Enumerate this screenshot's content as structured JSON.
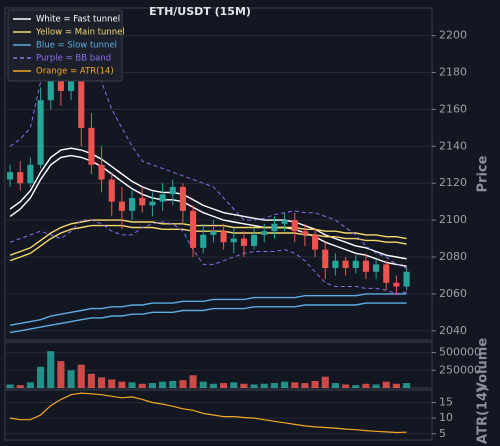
{
  "chart_data": [
    {
      "type": "candlestick",
      "title": "ETH/USDT (15M)",
      "y_label": "Price",
      "ylim": [
        2035,
        2215
      ],
      "yticks": [
        2040,
        2060,
        2080,
        2100,
        2120,
        2140,
        2160,
        2180,
        2200
      ],
      "grid": true,
      "up_color": "#26a69a",
      "down_color": "#ef5350",
      "open": [
        2122,
        2126,
        2120,
        2130,
        2165,
        2185,
        2170,
        2178,
        2150,
        2130,
        2122,
        2110,
        2105,
        2112,
        2108,
        2110,
        2114,
        2118,
        2105,
        2085,
        2092,
        2094,
        2088,
        2090,
        2086,
        2092,
        2094,
        2098,
        2100,
        2094,
        2092,
        2084,
        2074,
        2078,
        2074,
        2078,
        2072,
        2076,
        2066,
        2064
      ],
      "high": [
        2130,
        2132,
        2134,
        2172,
        2200,
        2198,
        2190,
        2182,
        2158,
        2140,
        2126,
        2118,
        2116,
        2118,
        2115,
        2120,
        2122,
        2120,
        2108,
        2098,
        2100,
        2098,
        2096,
        2094,
        2096,
        2098,
        2102,
        2104,
        2104,
        2098,
        2095,
        2088,
        2082,
        2080,
        2081,
        2082,
        2079,
        2078,
        2070,
        2075
      ],
      "low": [
        2118,
        2116,
        2118,
        2128,
        2160,
        2162,
        2165,
        2140,
        2125,
        2115,
        2102,
        2095,
        2100,
        2104,
        2102,
        2105,
        2108,
        2098,
        2080,
        2082,
        2088,
        2084,
        2082,
        2080,
        2084,
        2088,
        2090,
        2094,
        2088,
        2086,
        2080,
        2068,
        2070,
        2070,
        2071,
        2068,
        2068,
        2062,
        2060,
        2062
      ],
      "close": [
        2126,
        2120,
        2130,
        2165,
        2185,
        2170,
        2178,
        2150,
        2130,
        2122,
        2110,
        2105,
        2112,
        2108,
        2110,
        2114,
        2118,
        2105,
        2085,
        2092,
        2094,
        2088,
        2090,
        2086,
        2092,
        2094,
        2098,
        2100,
        2094,
        2092,
        2084,
        2074,
        2078,
        2074,
        2078,
        2072,
        2076,
        2066,
        2064,
        2072
      ],
      "overlays": [
        {
          "name": "White = Fast tunnel",
          "color": "#ffffff",
          "dashed": false,
          "upper": [
            2106,
            2110,
            2116,
            2126,
            2134,
            2138,
            2139,
            2138,
            2136,
            2133,
            2129,
            2125,
            2121,
            2118,
            2116,
            2115,
            2115,
            2114,
            2111,
            2108,
            2106,
            2104,
            2103,
            2102,
            2101,
            2100,
            2100,
            2100,
            2099,
            2097,
            2095,
            2092,
            2090,
            2088,
            2086,
            2085,
            2083,
            2081,
            2080,
            2079
          ],
          "lower": [
            2102,
            2106,
            2112,
            2122,
            2130,
            2134,
            2135,
            2134,
            2132,
            2129,
            2125,
            2121,
            2117,
            2114,
            2112,
            2111,
            2111,
            2110,
            2107,
            2104,
            2102,
            2100,
            2099,
            2098,
            2097,
            2096,
            2096,
            2096,
            2095,
            2093,
            2091,
            2088,
            2086,
            2084,
            2082,
            2081,
            2079,
            2077,
            2076,
            2075
          ]
        },
        {
          "name": "Yellow = Main tunnel",
          "color": "#f5d76e",
          "dashed": false,
          "upper": [
            2081,
            2083,
            2085,
            2089,
            2093,
            2096,
            2098,
            2099,
            2100,
            2100,
            2100,
            2100,
            2099,
            2099,
            2099,
            2098,
            2098,
            2098,
            2097,
            2097,
            2097,
            2097,
            2096,
            2096,
            2096,
            2096,
            2096,
            2096,
            2096,
            2095,
            2095,
            2094,
            2094,
            2093,
            2093,
            2092,
            2092,
            2091,
            2091,
            2090
          ],
          "lower": [
            2078,
            2080,
            2082,
            2086,
            2090,
            2093,
            2095,
            2096,
            2097,
            2097,
            2097,
            2097,
            2096,
            2096,
            2096,
            2095,
            2095,
            2095,
            2094,
            2094,
            2094,
            2094,
            2093,
            2093,
            2093,
            2093,
            2093,
            2093,
            2093,
            2092,
            2092,
            2091,
            2091,
            2090,
            2090,
            2089,
            2089,
            2088,
            2088,
            2087
          ]
        },
        {
          "name": "Blue = Slow tunnel",
          "color": "#5dade2",
          "dashed": false,
          "upper": [
            2043,
            2044,
            2045,
            2046,
            2048,
            2049,
            2050,
            2051,
            2052,
            2052,
            2053,
            2053,
            2054,
            2054,
            2055,
            2055,
            2055,
            2056,
            2056,
            2056,
            2057,
            2057,
            2057,
            2057,
            2058,
            2058,
            2058,
            2058,
            2058,
            2059,
            2059,
            2059,
            2059,
            2059,
            2059,
            2060,
            2060,
            2060,
            2060,
            2060
          ],
          "lower": [
            2039,
            2040,
            2041,
            2042,
            2043,
            2044,
            2045,
            2046,
            2047,
            2047,
            2048,
            2048,
            2049,
            2049,
            2050,
            2050,
            2050,
            2051,
            2051,
            2051,
            2052,
            2052,
            2052,
            2052,
            2053,
            2053,
            2053,
            2053,
            2053,
            2054,
            2054,
            2054,
            2054,
            2054,
            2054,
            2055,
            2055,
            2055,
            2055,
            2055
          ]
        },
        {
          "name": "Purple = BB band",
          "color": "#8e6cf0",
          "dashed": true,
          "upper": [
            2140,
            2144,
            2150,
            2175,
            2205,
            2212,
            2212,
            2208,
            2195,
            2175,
            2160,
            2150,
            2140,
            2132,
            2130,
            2128,
            2126,
            2124,
            2122,
            2120,
            2118,
            2112,
            2106,
            2100,
            2100,
            2101,
            2103,
            2104,
            2105,
            2104,
            2104,
            2102,
            2100,
            2096,
            2092,
            2086,
            2082,
            2080,
            2076,
            2074
          ],
          "lower": [
            2088,
            2090,
            2092,
            2094,
            2092,
            2090,
            2094,
            2100,
            2100,
            2098,
            2094,
            2092,
            2092,
            2096,
            2098,
            2099,
            2098,
            2094,
            2084,
            2076,
            2076,
            2078,
            2080,
            2082,
            2083,
            2083,
            2083,
            2084,
            2082,
            2078,
            2072,
            2066,
            2064,
            2064,
            2064,
            2063,
            2063,
            2062,
            2060,
            2061
          ]
        }
      ]
    },
    {
      "type": "bar",
      "y_label": "Volume",
      "ylim": [
        0,
        650000
      ],
      "yticks": [
        250000,
        500000
      ],
      "grid": true,
      "values": [
        50000,
        40000,
        80000,
        300000,
        520000,
        380000,
        250000,
        330000,
        200000,
        150000,
        120000,
        90000,
        80000,
        60000,
        70000,
        90000,
        100000,
        110000,
        180000,
        90000,
        60000,
        70000,
        80000,
        60000,
        50000,
        60000,
        70000,
        90000,
        80000,
        70000,
        100000,
        160000,
        70000,
        50000,
        40000,
        60000,
        50000,
        90000,
        60000,
        70000
      ]
    },
    {
      "type": "line",
      "y_label": "ATR(14)",
      "ylim": [
        3,
        19
      ],
      "yticks": [
        5,
        10,
        15
      ],
      "grid": true,
      "series": [
        {
          "name": "Orange = ATR(14)",
          "color": "#f5a623",
          "values": [
            10,
            9.5,
            9.5,
            11,
            14,
            16,
            17.5,
            18,
            17.8,
            17.5,
            17,
            16.5,
            16.8,
            16,
            15,
            14.5,
            13.8,
            13,
            12.5,
            11.5,
            11,
            10.5,
            10.5,
            10.2,
            10,
            9.5,
            9,
            8.5,
            8,
            7.5,
            7.2,
            7,
            6.8,
            6.5,
            6.3,
            6,
            5.8,
            5.6,
            5.4,
            5.5
          ]
        }
      ]
    }
  ]
}
